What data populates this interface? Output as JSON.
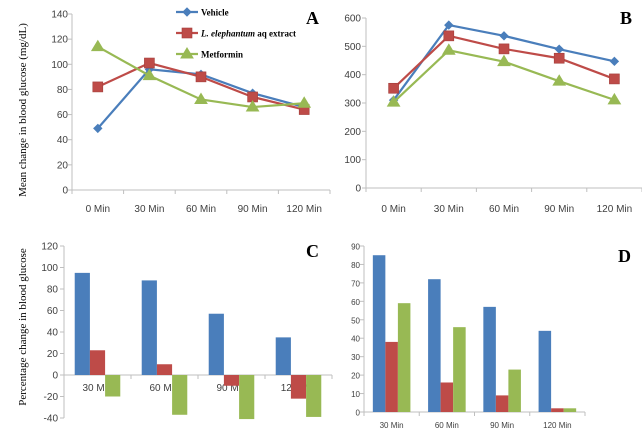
{
  "colors": {
    "vehicle": "#4a7ebb",
    "extract": "#be4b48",
    "metformin": "#98b954",
    "axis": "#bfbfbf"
  },
  "legend": [
    {
      "key": "vehicle",
      "label_italic": "",
      "label": "Vehicle",
      "marker": "diamond"
    },
    {
      "key": "extract",
      "label_italic": "L. elephantum",
      "label": " aq extract",
      "marker": "square"
    },
    {
      "key": "metformin",
      "label_italic": "",
      "label": "Metformin",
      "marker": "triangle"
    }
  ],
  "chart_data": [
    {
      "panel": "A",
      "type": "line",
      "title": "",
      "xlabel": "",
      "ylabel": "Mean change in blood glucose (mg/dL)",
      "categories": [
        "0 Min",
        "30 Min",
        "60 Min",
        "90 Min",
        "120 Min"
      ],
      "ylim": [
        0,
        140
      ],
      "yticks": [
        0,
        20,
        40,
        60,
        80,
        100,
        120,
        140
      ],
      "legend_position": "top-center",
      "grid": false,
      "series": [
        {
          "name": "Vehicle",
          "key": "vehicle",
          "values": [
            49,
            96,
            92,
            77,
            66
          ]
        },
        {
          "name": "L. elephantum aq extract",
          "key": "extract",
          "values": [
            82,
            101,
            90,
            74,
            64
          ]
        },
        {
          "name": "Metformin",
          "key": "metformin",
          "values": [
            114,
            91,
            72,
            66,
            69
          ]
        }
      ]
    },
    {
      "panel": "B",
      "type": "line",
      "title": "",
      "xlabel": "",
      "ylabel": "",
      "categories": [
        "0 Min",
        "30 Min",
        "60 Min",
        "90 Min",
        "120 Min"
      ],
      "ylim": [
        0,
        600
      ],
      "yticks": [
        0,
        100,
        200,
        300,
        400,
        500,
        600
      ],
      "grid": false,
      "series": [
        {
          "name": "Vehicle",
          "key": "vehicle",
          "values": [
            310,
            575,
            537,
            490,
            447
          ]
        },
        {
          "name": "L. elephantum aq extract",
          "key": "extract",
          "values": [
            352,
            537,
            491,
            458,
            385
          ]
        },
        {
          "name": "Metformin",
          "key": "metformin",
          "values": [
            303,
            486,
            446,
            377,
            311
          ]
        }
      ]
    },
    {
      "panel": "C",
      "type": "bar",
      "title": "",
      "xlabel": "",
      "ylabel": "Percentage change in blood glucose",
      "categories": [
        "30 Min",
        "60 Min",
        "90 Min",
        "120 Min"
      ],
      "ylim": [
        -40,
        120
      ],
      "yticks": [
        -40,
        -20,
        0,
        20,
        40,
        60,
        80,
        100,
        120
      ],
      "grid": false,
      "series": [
        {
          "name": "Vehicle",
          "key": "vehicle",
          "values": [
            95,
            88,
            57,
            35
          ]
        },
        {
          "name": "L. elephantum aq extract",
          "key": "extract",
          "values": [
            23,
            10,
            -10,
            -22
          ]
        },
        {
          "name": "Metformin",
          "key": "metformin",
          "values": [
            -20,
            -37,
            -41,
            -39
          ]
        }
      ]
    },
    {
      "panel": "D",
      "type": "bar",
      "title": "",
      "xlabel": "",
      "ylabel": "",
      "categories": [
        "30 Min",
        "60 Min",
        "90 Min",
        "120 Min"
      ],
      "ylim": [
        0,
        90
      ],
      "yticks": [
        0,
        10,
        20,
        30,
        40,
        50,
        60,
        70,
        80,
        90
      ],
      "grid": false,
      "series": [
        {
          "name": "Vehicle",
          "key": "vehicle",
          "values": [
            85,
            72,
            57,
            44
          ]
        },
        {
          "name": "L. elephantum aq extract",
          "key": "extract",
          "values": [
            38,
            16,
            9,
            2
          ]
        },
        {
          "name": "Metformin",
          "key": "metformin",
          "values": [
            59,
            46,
            23,
            2
          ]
        }
      ]
    }
  ]
}
